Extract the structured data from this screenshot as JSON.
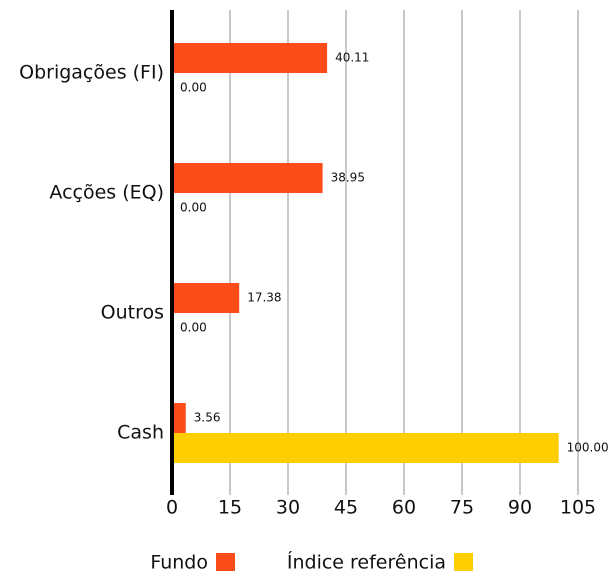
{
  "chart_data": {
    "type": "barh",
    "categories": [
      "Obrigações (FI)",
      "Acções (EQ)",
      "Outros",
      "Cash"
    ],
    "series": [
      {
        "name": "Fundo",
        "color": "#fc4c19",
        "values": [
          40.11,
          38.95,
          17.38,
          3.56
        ],
        "value_labels": [
          "40.11",
          "38.95",
          "17.38",
          "3.56"
        ]
      },
      {
        "name": "Índice referência",
        "color": "#ffce00",
        "values": [
          0,
          0,
          0,
          100
        ],
        "value_labels": [
          "0.00",
          "0.00",
          "0.00",
          "100.00"
        ]
      }
    ],
    "xlim": [
      0,
      105
    ],
    "xticks": [
      0,
      15,
      30,
      45,
      60,
      75,
      90,
      105
    ],
    "grid": true,
    "legend": "bottom"
  }
}
